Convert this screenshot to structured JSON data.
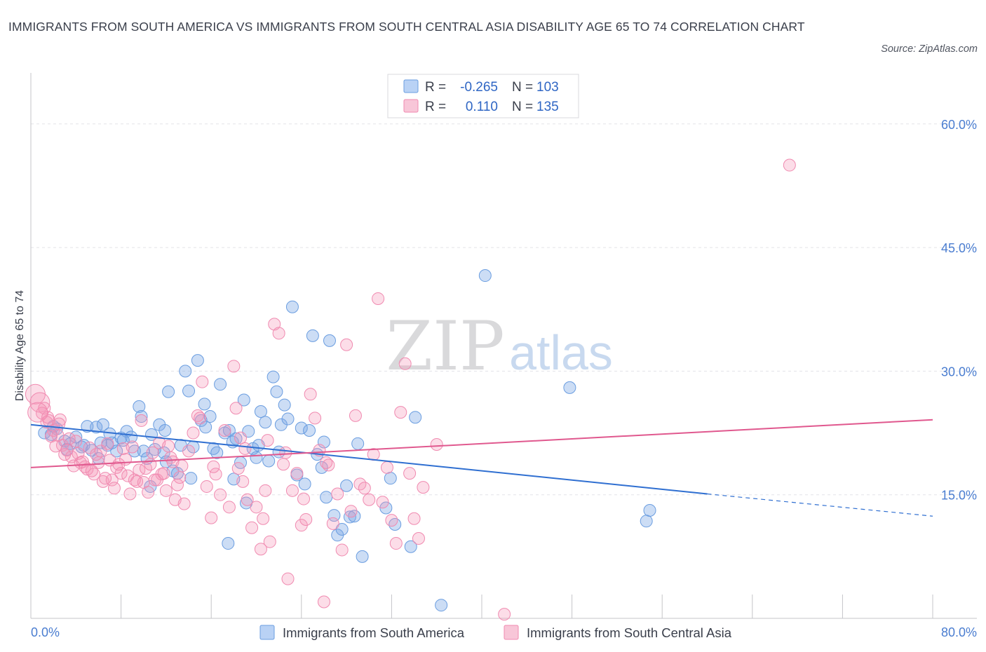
{
  "title": "IMMIGRANTS FROM SOUTH AMERICA VS IMMIGRANTS FROM SOUTH CENTRAL ASIA DISABILITY AGE 65 TO 74 CORRELATION CHART",
  "source": "Source: ZipAtlas.com",
  "watermark": {
    "zip": "ZIP",
    "atlas": "atlas"
  },
  "chart_data": {
    "type": "scatter",
    "ylabel": "Disability Age 65 to 74",
    "xlim": [
      0,
      80
    ],
    "ylim": [
      0,
      65
    ],
    "x_tick_labels": {
      "min": "0.0%",
      "max": "80.0%"
    },
    "y_ticks": [
      15,
      30,
      45,
      60
    ],
    "y_tick_labels": [
      "15.0%",
      "30.0%",
      "45.0%",
      "60.0%"
    ],
    "grid": true,
    "legend_position": "top-center",
    "legend": [
      {
        "r_label": "R =",
        "r_value": "-0.265",
        "n_label": "N =",
        "n_value": "103"
      },
      {
        "r_label": "R =",
        "r_value": "0.110",
        "n_label": "N =",
        "n_value": "135"
      }
    ],
    "series": [
      {
        "name": "Immigrants from South America",
        "color": "#6a9de0",
        "line_color": "#2f6fd1",
        "trend": {
          "x0": 0,
          "y0": 23.5,
          "x1": 60,
          "y1": 15.1,
          "dash_to_x": 80,
          "dash_to_y": 12.4
        },
        "points": [
          [
            1.2,
            22.5
          ],
          [
            1.8,
            22.3
          ],
          [
            2.3,
            23.0
          ],
          [
            3.0,
            21.5
          ],
          [
            3.5,
            21.2
          ],
          [
            4.0,
            22.0
          ],
          [
            4.5,
            20.8
          ],
          [
            5.0,
            23.3
          ],
          [
            5.4,
            20.4
          ],
          [
            5.8,
            23.2
          ],
          [
            6.2,
            21.3
          ],
          [
            6.8,
            21.0
          ],
          [
            7.2,
            21.3
          ],
          [
            7.6,
            20.3
          ],
          [
            8.0,
            21.9
          ],
          [
            8.5,
            22.7
          ],
          [
            8.9,
            22.0
          ],
          [
            9.2,
            20.3
          ],
          [
            9.6,
            25.7
          ],
          [
            10.0,
            20.3
          ],
          [
            10.3,
            19.4
          ],
          [
            10.7,
            22.3
          ],
          [
            11.0,
            20.5
          ],
          [
            11.4,
            23.5
          ],
          [
            11.8,
            20.1
          ],
          [
            12.2,
            27.5
          ],
          [
            12.6,
            17.9
          ],
          [
            13.0,
            17.6
          ],
          [
            13.3,
            21.0
          ],
          [
            13.7,
            30.0
          ],
          [
            14.0,
            27.6
          ],
          [
            14.4,
            20.8
          ],
          [
            14.8,
            31.3
          ],
          [
            15.1,
            24.0
          ],
          [
            15.5,
            23.2
          ],
          [
            15.9,
            24.5
          ],
          [
            16.2,
            20.6
          ],
          [
            16.5,
            20.1
          ],
          [
            16.8,
            28.4
          ],
          [
            17.2,
            22.5
          ],
          [
            17.6,
            22.8
          ],
          [
            17.9,
            21.4
          ],
          [
            18.2,
            21.8
          ],
          [
            18.6,
            18.9
          ],
          [
            18.9,
            26.5
          ],
          [
            19.3,
            22.7
          ],
          [
            19.7,
            20.6
          ],
          [
            20.0,
            19.5
          ],
          [
            20.4,
            25.1
          ],
          [
            20.8,
            23.8
          ],
          [
            21.1,
            19.1
          ],
          [
            21.5,
            29.3
          ],
          [
            21.8,
            27.5
          ],
          [
            22.2,
            23.5
          ],
          [
            22.5,
            25.9
          ],
          [
            22.8,
            24.2
          ],
          [
            23.2,
            37.8
          ],
          [
            23.6,
            17.4
          ],
          [
            24.0,
            23.1
          ],
          [
            24.3,
            16.3
          ],
          [
            24.7,
            22.8
          ],
          [
            25.0,
            34.3
          ],
          [
            25.4,
            19.9
          ],
          [
            25.8,
            18.3
          ],
          [
            26.2,
            14.7
          ],
          [
            26.5,
            33.7
          ],
          [
            26.9,
            12.5
          ],
          [
            27.2,
            10.1
          ],
          [
            27.6,
            10.8
          ],
          [
            28.0,
            16.1
          ],
          [
            28.3,
            12.3
          ],
          [
            28.7,
            12.4
          ],
          [
            29.0,
            21.2
          ],
          [
            29.4,
            7.5
          ],
          [
            31.5,
            13.4
          ],
          [
            31.9,
            17.0
          ],
          [
            32.3,
            11.4
          ],
          [
            33.7,
            8.7
          ],
          [
            34.1,
            24.4
          ],
          [
            36.4,
            1.6
          ],
          [
            40.3,
            41.6
          ],
          [
            47.8,
            28.0
          ],
          [
            54.6,
            11.8
          ],
          [
            54.9,
            13.1
          ],
          [
            10.6,
            16.0
          ],
          [
            12.0,
            19.0
          ],
          [
            8.2,
            21.6
          ],
          [
            4.7,
            21.0
          ],
          [
            6.0,
            19.4
          ],
          [
            17.5,
            9.1
          ],
          [
            26.0,
            21.4
          ],
          [
            20.2,
            21.0
          ],
          [
            19.1,
            14.0
          ],
          [
            6.4,
            23.5
          ],
          [
            14.2,
            17.0
          ],
          [
            3.2,
            20.5
          ],
          [
            7.0,
            22.4
          ],
          [
            11.9,
            22.8
          ],
          [
            9.8,
            24.5
          ],
          [
            15.4,
            26.0
          ],
          [
            18.0,
            16.9
          ],
          [
            22.0,
            20.2
          ],
          [
            2.0,
            23.3
          ]
        ]
      },
      {
        "name": "Immigrants from South Central Asia",
        "color": "#f08ab0",
        "line_color": "#e0588e",
        "trend": {
          "x0": 0,
          "y0": 18.3,
          "x1": 80,
          "y1": 24.1
        },
        "points": [
          [
            0.4,
            27.2
          ],
          [
            0.8,
            26.2
          ],
          [
            1.2,
            25.5
          ],
          [
            1.6,
            24.0
          ],
          [
            2.0,
            22.8
          ],
          [
            2.4,
            22.2
          ],
          [
            2.8,
            21.0
          ],
          [
            3.2,
            20.4
          ],
          [
            3.6,
            19.6
          ],
          [
            4.0,
            21.5
          ],
          [
            4.4,
            18.9
          ],
          [
            4.8,
            18.4
          ],
          [
            5.2,
            20.7
          ],
          [
            5.6,
            17.5
          ],
          [
            6.0,
            18.9
          ],
          [
            6.4,
            16.6
          ],
          [
            6.8,
            21.2
          ],
          [
            7.2,
            16.8
          ],
          [
            7.6,
            18.3
          ],
          [
            8.0,
            17.6
          ],
          [
            8.4,
            19.3
          ],
          [
            8.8,
            15.1
          ],
          [
            9.2,
            16.8
          ],
          [
            9.6,
            18.0
          ],
          [
            10.0,
            16.5
          ],
          [
            10.4,
            15.3
          ],
          [
            10.8,
            20.1
          ],
          [
            11.2,
            16.8
          ],
          [
            11.6,
            17.5
          ],
          [
            12.0,
            15.5
          ],
          [
            12.4,
            19.5
          ],
          [
            12.8,
            14.4
          ],
          [
            13.2,
            17.1
          ],
          [
            13.6,
            13.9
          ],
          [
            14.0,
            20.3
          ],
          [
            14.4,
            22.5
          ],
          [
            14.8,
            24.6
          ],
          [
            15.2,
            28.7
          ],
          [
            15.6,
            16.0
          ],
          [
            16.0,
            12.2
          ],
          [
            16.4,
            17.5
          ],
          [
            16.8,
            15.0
          ],
          [
            17.2,
            22.8
          ],
          [
            17.6,
            13.5
          ],
          [
            18.0,
            30.6
          ],
          [
            18.4,
            18.2
          ],
          [
            18.8,
            16.6
          ],
          [
            19.2,
            14.4
          ],
          [
            19.6,
            11.0
          ],
          [
            20.0,
            13.5
          ],
          [
            20.4,
            8.4
          ],
          [
            20.8,
            15.5
          ],
          [
            21.2,
            9.3
          ],
          [
            21.6,
            35.7
          ],
          [
            22.0,
            34.6
          ],
          [
            22.4,
            18.7
          ],
          [
            22.8,
            4.8
          ],
          [
            23.2,
            15.5
          ],
          [
            23.6,
            17.6
          ],
          [
            24.0,
            11.3
          ],
          [
            24.4,
            12.0
          ],
          [
            24.8,
            27.2
          ],
          [
            25.2,
            24.3
          ],
          [
            25.6,
            20.4
          ],
          [
            26.0,
            2.0
          ],
          [
            26.4,
            18.6
          ],
          [
            26.8,
            11.5
          ],
          [
            27.2,
            15.1
          ],
          [
            27.6,
            8.3
          ],
          [
            28.0,
            33.2
          ],
          [
            28.4,
            13.0
          ],
          [
            28.8,
            24.6
          ],
          [
            29.2,
            16.3
          ],
          [
            29.6,
            15.8
          ],
          [
            30.0,
            14.4
          ],
          [
            30.4,
            19.9
          ],
          [
            30.8,
            38.8
          ],
          [
            31.2,
            14.1
          ],
          [
            31.6,
            18.3
          ],
          [
            32.0,
            11.9
          ],
          [
            32.4,
            9.1
          ],
          [
            32.8,
            25.0
          ],
          [
            33.2,
            30.9
          ],
          [
            33.6,
            17.6
          ],
          [
            34.0,
            12.1
          ],
          [
            34.4,
            9.7
          ],
          [
            34.8,
            15.9
          ],
          [
            36.0,
            21.1
          ],
          [
            42.0,
            0.5
          ],
          [
            67.3,
            55.0
          ],
          [
            1.0,
            24.9
          ],
          [
            1.4,
            23.8
          ],
          [
            1.8,
            22.1
          ],
          [
            2.2,
            20.9
          ],
          [
            2.6,
            24.1
          ],
          [
            3.0,
            19.9
          ],
          [
            3.4,
            21.8
          ],
          [
            3.8,
            18.5
          ],
          [
            4.2,
            20.0
          ],
          [
            4.6,
            19.0
          ],
          [
            5.0,
            18.1
          ],
          [
            5.4,
            17.9
          ],
          [
            5.8,
            19.9
          ],
          [
            6.2,
            20.3
          ],
          [
            6.6,
            17.0
          ],
          [
            7.0,
            19.2
          ],
          [
            7.4,
            15.8
          ],
          [
            7.8,
            18.7
          ],
          [
            8.2,
            20.6
          ],
          [
            8.6,
            17.3
          ],
          [
            9.0,
            20.8
          ],
          [
            9.4,
            16.6
          ],
          [
            9.8,
            24.0
          ],
          [
            10.2,
            18.2
          ],
          [
            10.6,
            18.7
          ],
          [
            11.0,
            16.8
          ],
          [
            11.4,
            21.3
          ],
          [
            11.8,
            17.6
          ],
          [
            12.2,
            20.9
          ],
          [
            12.6,
            19.0
          ],
          [
            13.0,
            16.2
          ],
          [
            13.4,
            18.5
          ],
          [
            16.2,
            18.4
          ],
          [
            18.6,
            21.9
          ],
          [
            20.6,
            12.1
          ],
          [
            22.6,
            20.1
          ],
          [
            24.2,
            14.5
          ],
          [
            26.2,
            18.9
          ],
          [
            18.2,
            25.5
          ],
          [
            21.0,
            21.6
          ],
          [
            15.0,
            24.3
          ],
          [
            19.0,
            20.6
          ],
          [
            0.6,
            25.0
          ],
          [
            1.5,
            24.4
          ],
          [
            2.5,
            23.6
          ]
        ]
      }
    ]
  },
  "bottom_legend": [
    {
      "label": "Immigrants from South America"
    },
    {
      "label": "Immigrants from South Central Asia"
    }
  ]
}
